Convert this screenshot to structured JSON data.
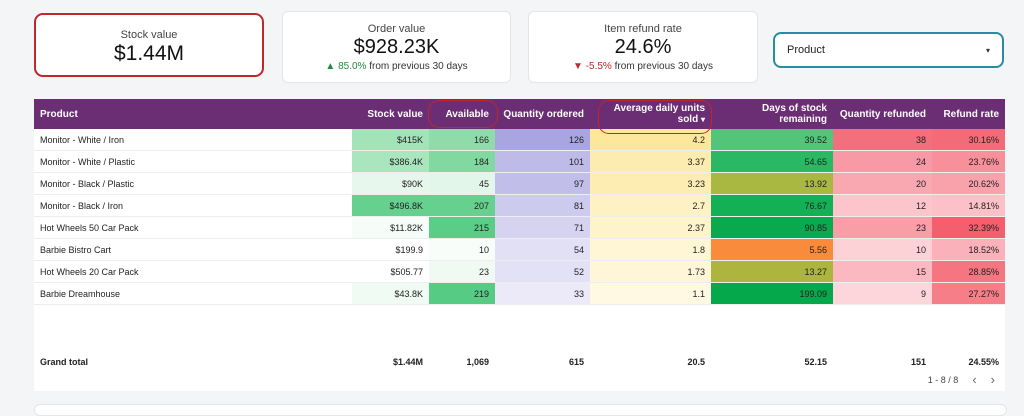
{
  "kpis": [
    {
      "label": "Stock value",
      "value": "$1.44M"
    },
    {
      "label": "Order value",
      "value": "$928.23K",
      "change_arrow": "▲",
      "change": "85.0%",
      "change_suffix": "from previous 30 days"
    },
    {
      "label": "Item refund rate",
      "value": "24.6%",
      "change_arrow": "▼",
      "change": "-5.5%",
      "change_suffix": "from previous 30 days"
    }
  ],
  "filter": {
    "label": "Product",
    "arrow": "▾"
  },
  "table": {
    "columns": [
      "Product",
      "Stock value",
      "Available",
      "Quantity ordered",
      "Average daily units sold",
      "Days of stock remaining",
      "Quantity refunded",
      "Refund rate"
    ],
    "sort_indicator": "▾",
    "rows": [
      {
        "cells": [
          "Monitor - White / Iron",
          "$415K",
          "166",
          "126",
          "4.2",
          "39.52",
          "38",
          "30.16%"
        ],
        "colors": [
          "#ffffff",
          "#a3e3b8",
          "#8fdcaa",
          "#a9a5e1",
          "#fce79a",
          "#52c57b",
          "#f26f7e",
          "#f36b78"
        ]
      },
      {
        "cells": [
          "Monitor - White / Plastic",
          "$386.4K",
          "184",
          "101",
          "3.37",
          "54.65",
          "24",
          "23.76%"
        ],
        "colors": [
          "#ffffff",
          "#a9e6be",
          "#81d8a1",
          "#bebbe8",
          "#fdecb0",
          "#2bb864",
          "#f89aa5",
          "#f8909b"
        ]
      },
      {
        "cells": [
          "Monitor - Black / Plastic",
          "$90K",
          "45",
          "97",
          "3.23",
          "13.92",
          "20",
          "20.62%"
        ],
        "colors": [
          "#ffffff",
          "#e8f7ed",
          "#e3f6ea",
          "#c1bee9",
          "#fdedb3",
          "#a8b840",
          "#f9a8b1",
          "#f9a2ac"
        ]
      },
      {
        "cells": [
          "Monitor - Black / Iron",
          "$496.8K",
          "207",
          "81",
          "2.7",
          "76.67",
          "12",
          "14.81%"
        ],
        "colors": [
          "#ffffff",
          "#66d08f",
          "#66d08f",
          "#cdcbed",
          "#fef2c4",
          "#14b055",
          "#fcc4cb",
          "#fcc1c8"
        ]
      },
      {
        "cells": [
          "Hot Wheels 50 Car Pack",
          "$11.82K",
          "215",
          "71",
          "2.37",
          "90.85",
          "23",
          "32.39%"
        ],
        "colors": [
          "#ffffff",
          "#f6fcf8",
          "#5acd87",
          "#d5d3f0",
          "#fef4cc",
          "#0aa94e",
          "#f99da7",
          "#f45f6d"
        ]
      },
      {
        "cells": [
          "Barbie Bistro Cart",
          "$199.9",
          "10",
          "54",
          "1.8",
          "5.56",
          "10",
          "18.52%"
        ],
        "colors": [
          "#ffffff",
          "#ffffff",
          "#f9fdfa",
          "#e1e0f5",
          "#fff6d5",
          "#f98b3c",
          "#fdd2d7",
          "#fbb1b9"
        ]
      },
      {
        "cells": [
          "Hot Wheels 20 Car Pack",
          "$505.77",
          "23",
          "52",
          "1.73",
          "13.27",
          "15",
          "28.85%"
        ],
        "colors": [
          "#ffffff",
          "#ffffff",
          "#f0faf3",
          "#e2e1f5",
          "#fff6d7",
          "#adb53f",
          "#fbb8c0",
          "#f57581"
        ]
      },
      {
        "cells": [
          "Barbie Dreamhouse",
          "$43.8K",
          "219",
          "33",
          "1.1",
          "199.09",
          "9",
          "27.27%"
        ],
        "colors": [
          "#ffffff",
          "#f0fbf4",
          "#55cb83",
          "#eceaf8",
          "#fff9e3",
          "#06a84c",
          "#fdd6db",
          "#f67e89"
        ]
      }
    ],
    "totals": [
      "Grand total",
      "$1.44M",
      "1,069",
      "615",
      "20.5",
      "52.15",
      "151",
      "24.55%"
    ],
    "pagination": {
      "range": "1 - 8 / 8",
      "prev": "‹",
      "next": "›"
    }
  }
}
